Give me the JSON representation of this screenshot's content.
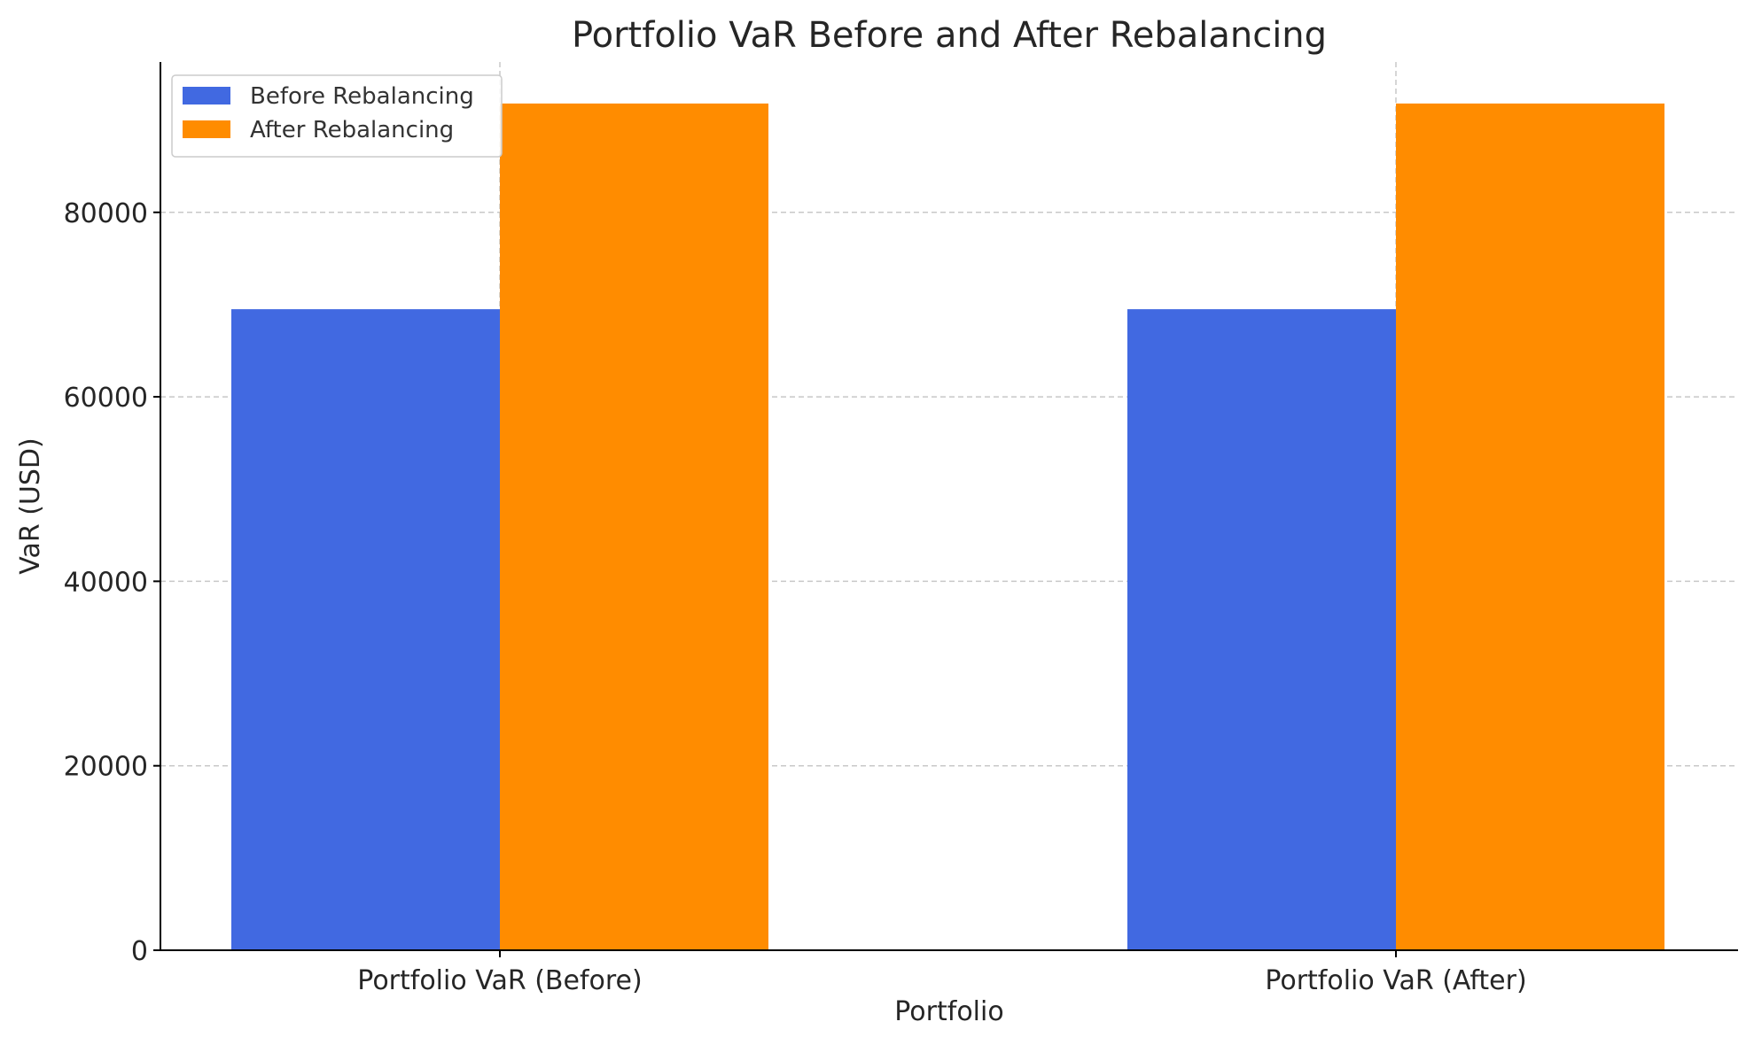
{
  "chart_data": {
    "type": "bar",
    "title": "Portfolio VaR Before and After Rebalancing",
    "xlabel": "Portfolio",
    "ylabel": "VaR (USD)",
    "categories": [
      "Portfolio VaR (Before)",
      "Portfolio VaR (After)"
    ],
    "series": [
      {
        "name": "Before Rebalancing",
        "color": "#4169E1",
        "values": [
          69500,
          69500
        ]
      },
      {
        "name": "After Rebalancing",
        "color": "#FF8C00",
        "values": [
          91800,
          91800
        ]
      }
    ],
    "ylim": [
      0,
      96300
    ],
    "yticks": [
      0,
      20000,
      40000,
      60000,
      80000
    ],
    "ytick_labels": [
      "0",
      "20000",
      "40000",
      "60000",
      "80000"
    ],
    "grid": true,
    "legend_position": "top-left"
  }
}
